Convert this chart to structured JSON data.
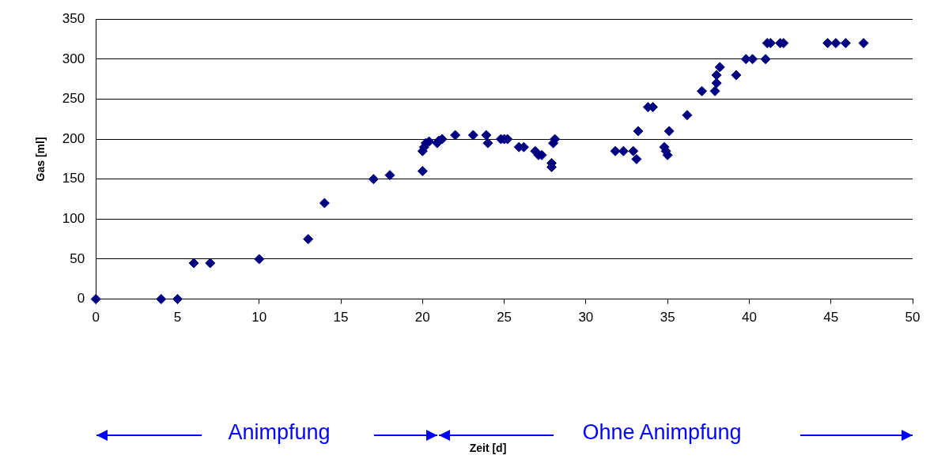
{
  "chart_data": {
    "type": "scatter",
    "ylabel": "Gas [ml]",
    "x": [
      0,
      4,
      5,
      6,
      7,
      10,
      13,
      14,
      17,
      18,
      20,
      20,
      20.1,
      20.2,
      20.4,
      20.9,
      21,
      21.2,
      22,
      23.1,
      23.9,
      24,
      24.8,
      25,
      25.2,
      25.9,
      26.2,
      26.9,
      27.1,
      27.3,
      27.9,
      27.9,
      28,
      28.1,
      31.8,
      32.3,
      32.9,
      33.1,
      33.2,
      33.8,
      34.1,
      34.8,
      34.9,
      35,
      35.1,
      36.2,
      37.1,
      37.9,
      38,
      38,
      38.2,
      39.2,
      39.8,
      40.2,
      41,
      41.1,
      41.3,
      41.9,
      42.1,
      44.8,
      45.3,
      45.9,
      47
    ],
    "series": [
      {
        "color": "#000080",
        "values": [
          0,
          0,
          0,
          45,
          45,
          50,
          75,
          120,
          150,
          155,
          160,
          185,
          190,
          195,
          197,
          195,
          198,
          200,
          205,
          205,
          205,
          195,
          200,
          200,
          200,
          190,
          190,
          185,
          180,
          180,
          170,
          165,
          195,
          200,
          185,
          185,
          185,
          175,
          210,
          240,
          240,
          190,
          185,
          180,
          210,
          230,
          260,
          260,
          270,
          280,
          290,
          280,
          300,
          300,
          300,
          320,
          320,
          320,
          320,
          320,
          320,
          320,
          320
        ]
      }
    ],
    "xlim": [
      0,
      50
    ],
    "xticks": [
      0,
      5,
      10,
      15,
      20,
      25,
      30,
      35,
      40,
      45,
      50
    ],
    "ylim": [
      0,
      350
    ],
    "yticks": [
      0,
      50,
      100,
      150,
      200,
      250,
      300,
      350
    ],
    "grid": "y",
    "legend": false,
    "marker": "diamond",
    "annotations": [
      "Animpfung",
      "Ohne Animpfung",
      "Zeit [d]"
    ]
  }
}
